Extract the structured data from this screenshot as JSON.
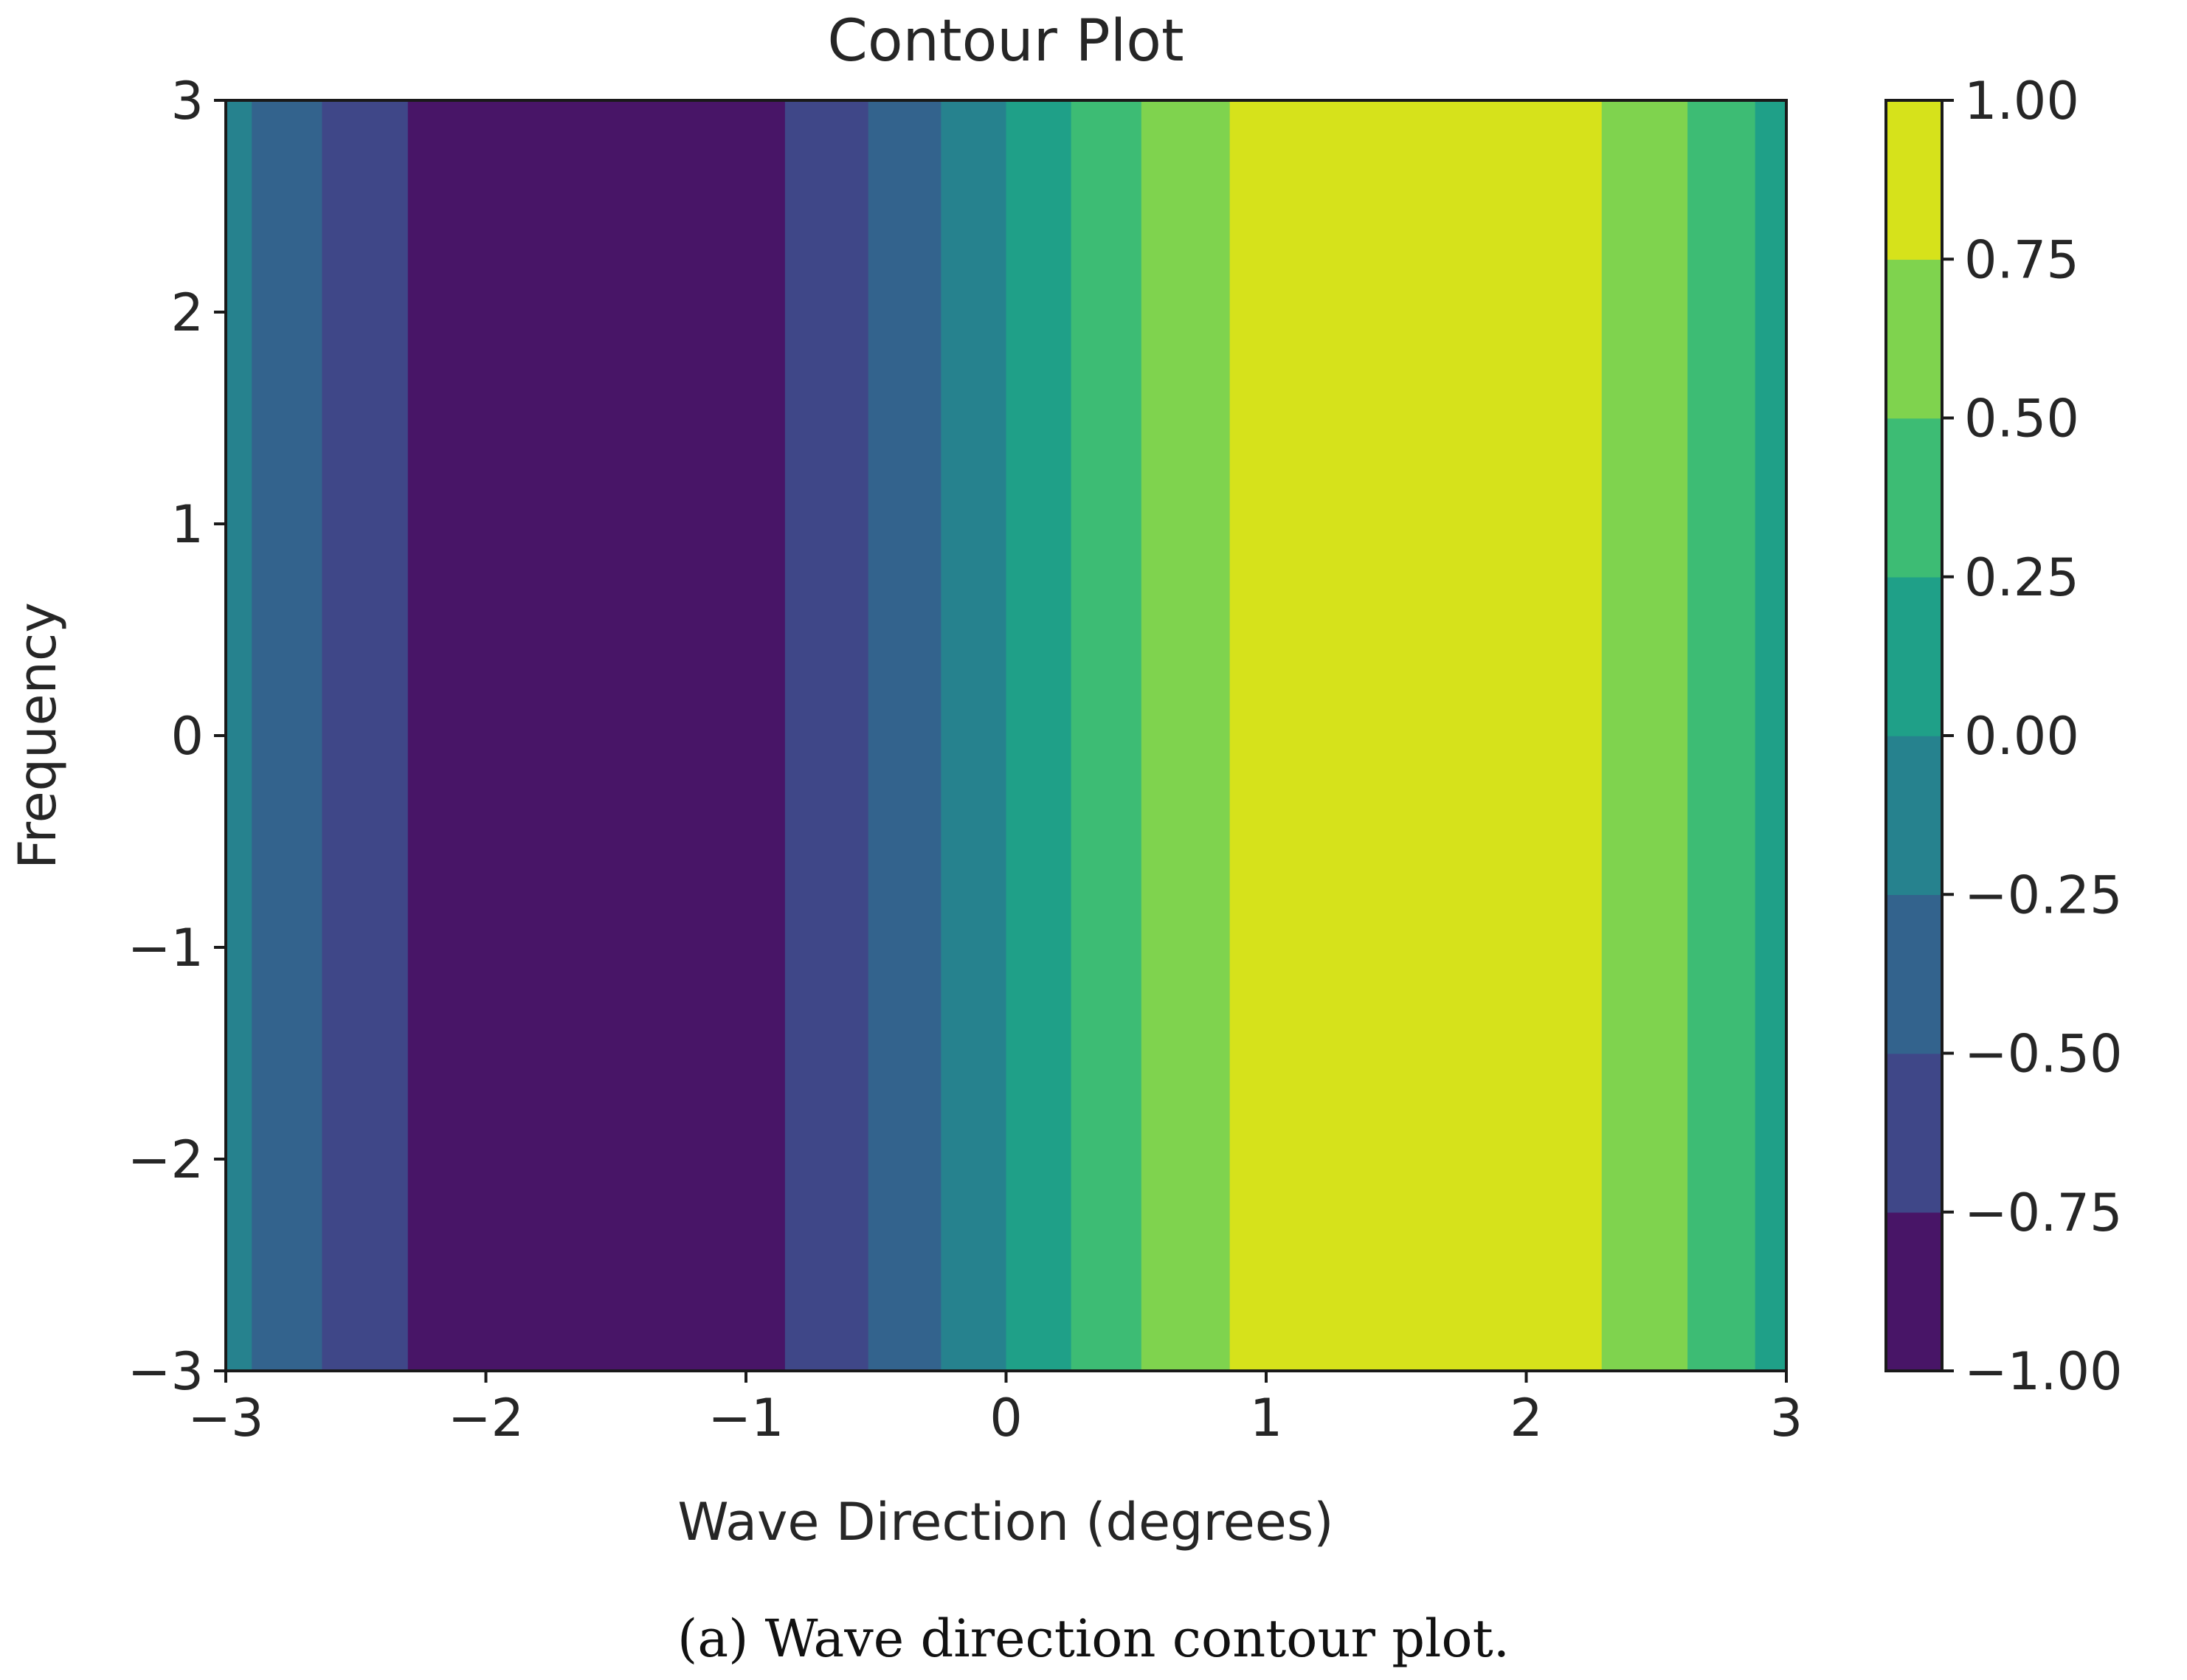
{
  "chart_data": {
    "type": "heatmap",
    "subtype": "filled-contour",
    "title": "Contour Plot",
    "xlabel": "Wave Direction (degrees)",
    "ylabel": "Frequency",
    "xlim": [
      -3,
      3
    ],
    "ylim": [
      -3,
      3
    ],
    "x_ticks": [
      -3,
      -2,
      -1,
      0,
      1,
      2,
      3
    ],
    "y_ticks": [
      -3,
      -2,
      -1,
      0,
      1,
      2,
      3
    ],
    "colorbar": {
      "levels": [
        -1.0,
        -0.75,
        -0.5,
        -0.25,
        0.0,
        0.25,
        0.5,
        0.75,
        1.0
      ],
      "tick_labels": [
        "−1.00",
        "−0.75",
        "−0.50",
        "−0.25",
        "0.00",
        "0.25",
        "0.50",
        "0.75",
        "1.00"
      ],
      "colors": [
        "#481567",
        "#3f4788",
        "#33638d",
        "#26828e",
        "#1fa088",
        "#3dbc74",
        "#7fd34e",
        "#d6e21b"
      ]
    },
    "bands": [
      {
        "x0": -3.0,
        "x1": -2.9,
        "level": 3
      },
      {
        "x0": -2.9,
        "x1": -2.63,
        "level": 2
      },
      {
        "x0": -2.63,
        "x1": -2.3,
        "level": 1
      },
      {
        "x0": -2.3,
        "x1": -0.85,
        "level": 0
      },
      {
        "x0": -0.85,
        "x1": -0.53,
        "level": 1
      },
      {
        "x0": -0.53,
        "x1": -0.25,
        "level": 2
      },
      {
        "x0": -0.25,
        "x1": 0.0,
        "level": 3
      },
      {
        "x0": 0.0,
        "x1": 0.25,
        "level": 4
      },
      {
        "x0": 0.25,
        "x1": 0.52,
        "level": 5
      },
      {
        "x0": 0.52,
        "x1": 0.86,
        "level": 6
      },
      {
        "x0": 0.86,
        "x1": 2.29,
        "level": 7
      },
      {
        "x0": 2.29,
        "x1": 2.62,
        "level": 6
      },
      {
        "x0": 2.62,
        "x1": 2.88,
        "level": 5
      },
      {
        "x0": 2.88,
        "x1": 3.0,
        "level": 4
      }
    ]
  },
  "caption": "(a) Wave direction contour plot."
}
